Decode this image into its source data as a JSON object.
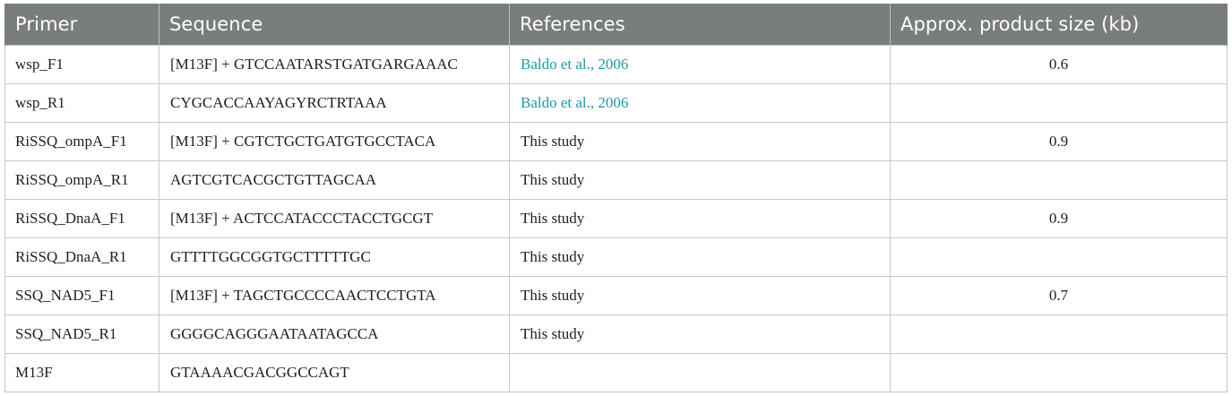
{
  "table": {
    "headers": {
      "primer": "Primer",
      "sequence": "Sequence",
      "references": "References",
      "size": "Approx. product size (kb)"
    },
    "rows": [
      {
        "primer": "wsp_F1",
        "sequence": "[M13F] + GTCCAATARSTGATGARGAAAC",
        "reference": "Baldo et al., 2006",
        "reference_is_link": true,
        "size": "0.6"
      },
      {
        "primer": "wsp_R1",
        "sequence": "CYGCACCAAYAGYRCTRTAAA",
        "reference": "Baldo et al., 2006",
        "reference_is_link": true,
        "size": ""
      },
      {
        "primer": "RiSSQ_ompA_F1",
        "sequence": "[M13F] + CGTCTGCTGATGTGCCTACA",
        "reference": "This study",
        "reference_is_link": false,
        "size": "0.9"
      },
      {
        "primer": "RiSSQ_ompA_R1",
        "sequence": "AGTCGTCACGCTGTTAGCAA",
        "reference": "This study",
        "reference_is_link": false,
        "size": ""
      },
      {
        "primer": "RiSSQ_DnaA_F1",
        "sequence": "[M13F] + ACTCCATACCCTACCTGCGT",
        "reference": "This study",
        "reference_is_link": false,
        "size": "0.9"
      },
      {
        "primer": "RiSSQ_DnaA_R1",
        "sequence": "GTTTTGGCGGTGCTTTTTGC",
        "reference": "This study",
        "reference_is_link": false,
        "size": ""
      },
      {
        "primer": "SSQ_NAD5_F1",
        "sequence": "[M13F] + TAGCTGCCCCAACTCCTGTA",
        "reference": "This study",
        "reference_is_link": false,
        "size": "0.7"
      },
      {
        "primer": "SSQ_NAD5_R1",
        "sequence": "GGGGCAGGGAATAATAGCCA",
        "reference": "This study",
        "reference_is_link": false,
        "size": ""
      },
      {
        "primer": "M13F",
        "sequence": "GTAAAACGACGGCCAGT",
        "reference": "",
        "reference_is_link": false,
        "size": ""
      }
    ]
  },
  "colors": {
    "header_bg": "#7a7d7e",
    "link": "#1a9aa8",
    "border": "#c8c8c8"
  }
}
